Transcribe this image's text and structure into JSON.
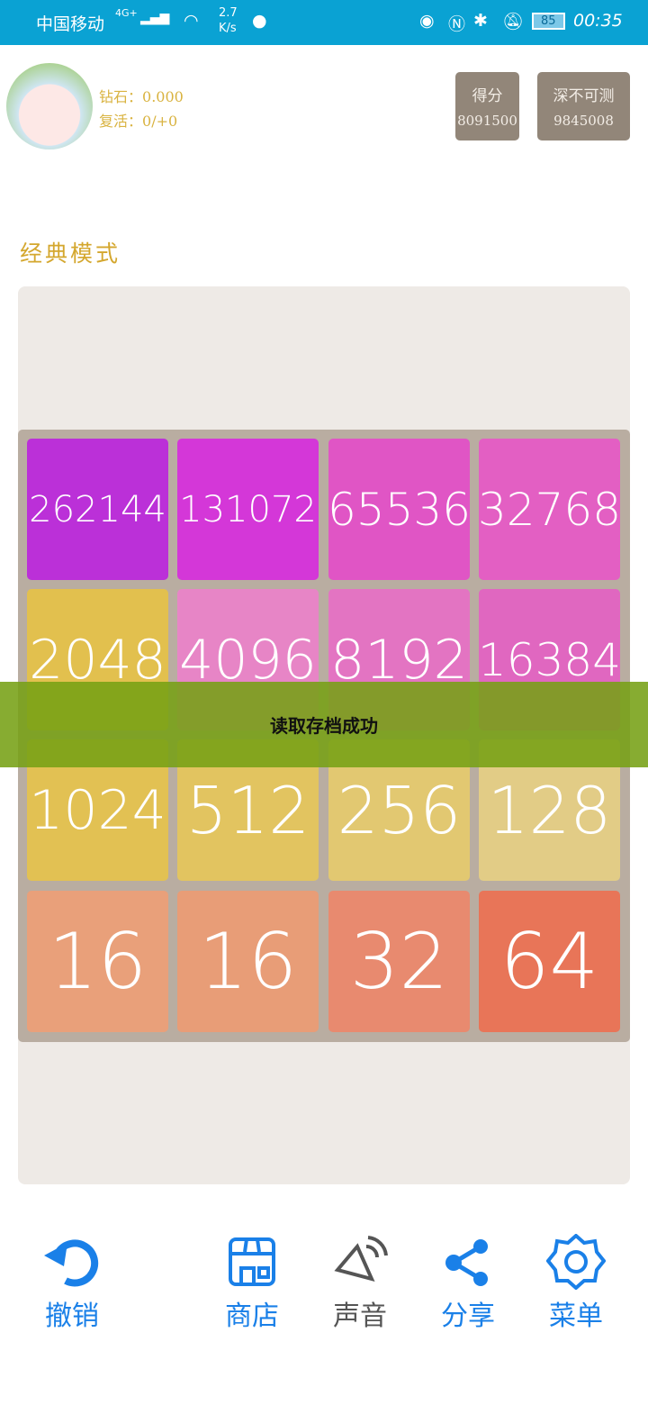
{
  "status_bar": {
    "carrier": "中国移动",
    "network": "4G+",
    "speed": "2.7\nK/s",
    "battery": "85",
    "time": "00:35"
  },
  "profile": {
    "diamond_label": "钻石：",
    "diamond_value": "0.000",
    "revive_label": "复活：",
    "revive_value": "0/+0"
  },
  "score": {
    "label": "得分",
    "value": "8091500"
  },
  "best": {
    "label": "深不可测",
    "value": "9845008"
  },
  "mode_title": "经典模式",
  "board": [
    [
      "262144",
      "131072",
      "65536",
      "32768"
    ],
    [
      "2048",
      "4096",
      "8192",
      "16384"
    ],
    [
      "1024",
      "512",
      "256",
      "128"
    ],
    [
      "16",
      "16",
      "32",
      "64"
    ]
  ],
  "tile_colors": [
    [
      "#bb30d8",
      "#d437d8",
      "#e055c5",
      "#e35fc3"
    ],
    [
      "#e2c04e",
      "#e785c6",
      "#e374c2",
      "#e067c0"
    ],
    [
      "#e2c153",
      "#e2c460",
      "#e2c871",
      "#e2cc86"
    ],
    [
      "#e9a07a",
      "#e89d77",
      "#e88a6f",
      "#e87558"
    ]
  ],
  "toast": "读取存档成功",
  "nav": {
    "undo": "撤销",
    "shop": "商店",
    "sound": "声音",
    "share": "分享",
    "menu": "菜单"
  },
  "colors": {
    "accent": "#1a80e8",
    "status_bar": "#0aa2d3"
  }
}
